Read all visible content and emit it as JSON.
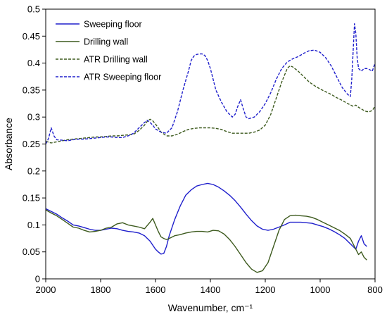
{
  "chart_data": {
    "type": "line",
    "title": "",
    "xlabel": "Wavenumber, cm⁻¹",
    "ylabel": "Absorbance",
    "xlim": [
      2000,
      800
    ],
    "ylim": [
      0,
      0.5
    ],
    "x_reversed": true,
    "x_ticks": [
      2000,
      1800,
      1600,
      1400,
      1200,
      1000,
      800
    ],
    "x_tick_labels": [
      "2000",
      "1800",
      "1600",
      "1400",
      "1200",
      "1000",
      "800"
    ],
    "y_ticks": [
      0,
      0.05,
      0.1,
      0.15,
      0.2,
      0.25,
      0.3,
      0.35,
      0.4,
      0.45,
      0.5
    ],
    "y_tick_labels": [
      "0",
      "0.05",
      "0.1",
      "0.15",
      "0.2",
      "0.25",
      "0.3",
      "0.35",
      "0.4",
      "0.45",
      "0.5"
    ],
    "grid": false,
    "legend_position": "top-left",
    "series": [
      {
        "name": "Sweeping floor",
        "color": "#1f1fcc",
        "dash": "solid",
        "x": [
          2000,
          1980,
          1960,
          1940,
          1920,
          1900,
          1880,
          1860,
          1840,
          1820,
          1800,
          1780,
          1760,
          1740,
          1720,
          1700,
          1680,
          1660,
          1640,
          1620,
          1600,
          1590,
          1580,
          1570,
          1560,
          1550,
          1530,
          1510,
          1490,
          1470,
          1450,
          1430,
          1410,
          1390,
          1370,
          1350,
          1330,
          1310,
          1290,
          1270,
          1250,
          1230,
          1210,
          1190,
          1170,
          1150,
          1130,
          1110,
          1090,
          1070,
          1050,
          1030,
          1010,
          990,
          970,
          950,
          930,
          910,
          890,
          880,
          870,
          860,
          850,
          840,
          830
        ],
        "y": [
          0.13,
          0.125,
          0.12,
          0.113,
          0.107,
          0.1,
          0.098,
          0.095,
          0.092,
          0.09,
          0.09,
          0.092,
          0.094,
          0.093,
          0.09,
          0.088,
          0.087,
          0.085,
          0.08,
          0.07,
          0.055,
          0.05,
          0.046,
          0.047,
          0.06,
          0.08,
          0.11,
          0.135,
          0.155,
          0.165,
          0.172,
          0.175,
          0.177,
          0.175,
          0.17,
          0.163,
          0.155,
          0.145,
          0.133,
          0.12,
          0.108,
          0.098,
          0.092,
          0.09,
          0.092,
          0.096,
          0.1,
          0.105,
          0.105,
          0.105,
          0.104,
          0.103,
          0.1,
          0.097,
          0.093,
          0.088,
          0.082,
          0.075,
          0.065,
          0.06,
          0.055,
          0.07,
          0.08,
          0.065,
          0.06
        ]
      },
      {
        "name": "Drilling wall",
        "color": "#3d5a1e",
        "dash": "solid",
        "x": [
          2000,
          1980,
          1960,
          1940,
          1920,
          1900,
          1880,
          1860,
          1840,
          1820,
          1800,
          1780,
          1760,
          1740,
          1720,
          1700,
          1680,
          1660,
          1640,
          1620,
          1610,
          1600,
          1590,
          1580,
          1570,
          1560,
          1550,
          1530,
          1510,
          1490,
          1470,
          1450,
          1430,
          1410,
          1390,
          1370,
          1350,
          1330,
          1310,
          1290,
          1270,
          1250,
          1230,
          1210,
          1190,
          1170,
          1150,
          1130,
          1110,
          1090,
          1070,
          1050,
          1030,
          1010,
          990,
          970,
          950,
          930,
          910,
          890,
          880,
          870,
          860,
          850,
          840,
          830
        ],
        "y": [
          0.128,
          0.122,
          0.117,
          0.11,
          0.103,
          0.096,
          0.094,
          0.09,
          0.087,
          0.088,
          0.09,
          0.094,
          0.096,
          0.102,
          0.104,
          0.1,
          0.098,
          0.096,
          0.093,
          0.105,
          0.112,
          0.1,
          0.088,
          0.078,
          0.075,
          0.073,
          0.075,
          0.08,
          0.082,
          0.085,
          0.087,
          0.088,
          0.088,
          0.087,
          0.09,
          0.089,
          0.083,
          0.073,
          0.06,
          0.045,
          0.03,
          0.018,
          0.012,
          0.015,
          0.03,
          0.06,
          0.09,
          0.11,
          0.117,
          0.118,
          0.117,
          0.116,
          0.114,
          0.11,
          0.105,
          0.1,
          0.095,
          0.09,
          0.083,
          0.075,
          0.065,
          0.055,
          0.045,
          0.05,
          0.04,
          0.035
        ]
      },
      {
        "name": "ATR Drilling wall",
        "color": "#3d5a1e",
        "dash": "dashed",
        "x": [
          2000,
          1980,
          1960,
          1940,
          1920,
          1900,
          1880,
          1860,
          1840,
          1820,
          1800,
          1780,
          1760,
          1740,
          1720,
          1700,
          1680,
          1660,
          1640,
          1630,
          1620,
          1610,
          1600,
          1590,
          1580,
          1560,
          1540,
          1520,
          1500,
          1480,
          1460,
          1440,
          1420,
          1400,
          1380,
          1360,
          1340,
          1320,
          1300,
          1280,
          1260,
          1240,
          1220,
          1200,
          1180,
          1160,
          1140,
          1120,
          1110,
          1100,
          1080,
          1060,
          1040,
          1020,
          1000,
          980,
          960,
          940,
          920,
          900,
          880,
          870,
          860,
          850,
          840,
          830,
          820,
          810,
          800
        ],
        "y": [
          0.255,
          0.252,
          0.254,
          0.256,
          0.258,
          0.259,
          0.26,
          0.261,
          0.262,
          0.263,
          0.263,
          0.264,
          0.265,
          0.265,
          0.266,
          0.267,
          0.268,
          0.275,
          0.285,
          0.292,
          0.296,
          0.293,
          0.287,
          0.28,
          0.272,
          0.265,
          0.265,
          0.268,
          0.273,
          0.277,
          0.279,
          0.28,
          0.28,
          0.28,
          0.279,
          0.277,
          0.273,
          0.27,
          0.27,
          0.27,
          0.27,
          0.272,
          0.276,
          0.285,
          0.305,
          0.335,
          0.365,
          0.39,
          0.395,
          0.393,
          0.385,
          0.375,
          0.365,
          0.358,
          0.352,
          0.347,
          0.342,
          0.336,
          0.331,
          0.325,
          0.32,
          0.322,
          0.318,
          0.315,
          0.312,
          0.31,
          0.31,
          0.312,
          0.32
        ]
      },
      {
        "name": "ATR Sweeping floor",
        "color": "#1f1fcc",
        "dash": "dashed",
        "x": [
          2000,
          1990,
          1980,
          1970,
          1960,
          1940,
          1920,
          1900,
          1880,
          1860,
          1840,
          1820,
          1800,
          1780,
          1760,
          1740,
          1720,
          1700,
          1680,
          1660,
          1640,
          1630,
          1620,
          1610,
          1600,
          1580,
          1560,
          1540,
          1520,
          1500,
          1480,
          1470,
          1460,
          1450,
          1440,
          1430,
          1420,
          1410,
          1400,
          1390,
          1380,
          1360,
          1340,
          1320,
          1310,
          1300,
          1290,
          1280,
          1270,
          1260,
          1240,
          1220,
          1200,
          1180,
          1160,
          1140,
          1120,
          1100,
          1080,
          1060,
          1040,
          1020,
          1000,
          980,
          960,
          940,
          920,
          900,
          890,
          885,
          880,
          875,
          870,
          865,
          860,
          850,
          840,
          830,
          820,
          810,
          800
        ],
        "y": [
          0.25,
          0.26,
          0.28,
          0.265,
          0.258,
          0.257,
          0.256,
          0.258,
          0.259,
          0.259,
          0.26,
          0.261,
          0.262,
          0.263,
          0.263,
          0.262,
          0.262,
          0.265,
          0.27,
          0.28,
          0.29,
          0.294,
          0.29,
          0.285,
          0.278,
          0.272,
          0.27,
          0.28,
          0.31,
          0.35,
          0.385,
          0.405,
          0.413,
          0.416,
          0.417,
          0.417,
          0.414,
          0.405,
          0.39,
          0.37,
          0.35,
          0.328,
          0.31,
          0.3,
          0.305,
          0.32,
          0.332,
          0.315,
          0.3,
          0.297,
          0.3,
          0.31,
          0.325,
          0.345,
          0.37,
          0.39,
          0.402,
          0.408,
          0.412,
          0.418,
          0.423,
          0.424,
          0.42,
          0.41,
          0.395,
          0.375,
          0.355,
          0.342,
          0.338,
          0.37,
          0.42,
          0.473,
          0.455,
          0.41,
          0.39,
          0.385,
          0.39,
          0.39,
          0.388,
          0.385,
          0.4
        ]
      }
    ]
  }
}
